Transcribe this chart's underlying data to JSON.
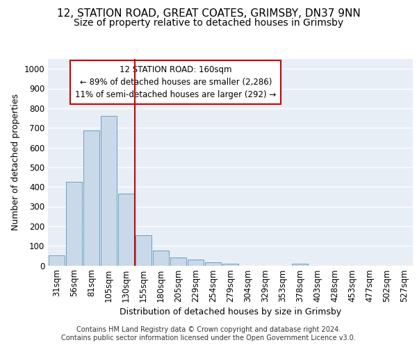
{
  "title_line1": "12, STATION ROAD, GREAT COATES, GRIMSBY, DN37 9NN",
  "title_line2": "Size of property relative to detached houses in Grimsby",
  "xlabel": "Distribution of detached houses by size in Grimsby",
  "ylabel": "Number of detached properties",
  "categories": [
    "31sqm",
    "56sqm",
    "81sqm",
    "105sqm",
    "130sqm",
    "155sqm",
    "180sqm",
    "205sqm",
    "229sqm",
    "254sqm",
    "279sqm",
    "304sqm",
    "329sqm",
    "353sqm",
    "378sqm",
    "403sqm",
    "428sqm",
    "453sqm",
    "477sqm",
    "502sqm",
    "527sqm"
  ],
  "values": [
    50,
    425,
    685,
    760,
    365,
    155,
    75,
    40,
    30,
    15,
    8,
    0,
    0,
    0,
    8,
    0,
    0,
    0,
    0,
    0,
    0
  ],
  "bar_color": "#c9d9ea",
  "bar_edge_color": "#6a9ec0",
  "reference_line_x": 4.5,
  "reference_line_color": "#cc0000",
  "annotation_text": "12 STATION ROAD: 160sqm\n← 89% of detached houses are smaller (2,286)\n11% of semi-detached houses are larger (292) →",
  "annotation_box_color": "#ffffff",
  "annotation_box_edge_color": "#cc0000",
  "ylim": [
    0,
    1050
  ],
  "yticks": [
    0,
    100,
    200,
    300,
    400,
    500,
    600,
    700,
    800,
    900,
    1000
  ],
  "background_color": "#e8eef5",
  "grid_color": "#ffffff",
  "footer_text": "Contains HM Land Registry data © Crown copyright and database right 2024.\nContains public sector information licensed under the Open Government Licence v3.0.",
  "title_fontsize": 11,
  "subtitle_fontsize": 10,
  "tick_fontsize": 8.5,
  "label_fontsize": 9,
  "ann_fontsize": 8.5
}
